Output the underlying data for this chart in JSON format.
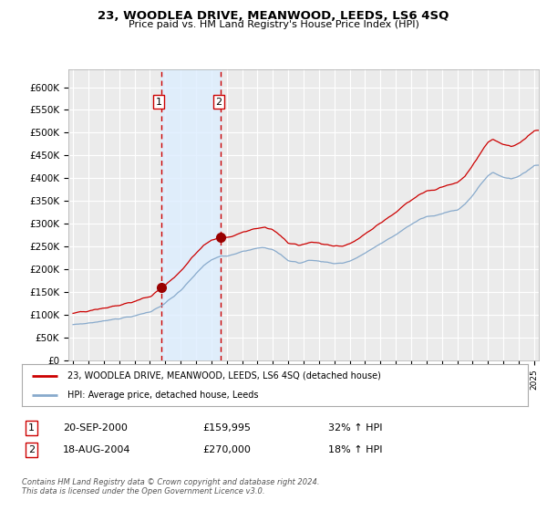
{
  "title": "23, WOODLEA DRIVE, MEANWOOD, LEEDS, LS6 4SQ",
  "subtitle": "Price paid vs. HM Land Registry's House Price Index (HPI)",
  "legend_line1": "23, WOODLEA DRIVE, MEANWOOD, LEEDS, LS6 4SQ (detached house)",
  "legend_line2": "HPI: Average price, detached house, Leeds",
  "table_row1_label": "1",
  "table_row1_date": "20-SEP-2000",
  "table_row1_price": "£159,995",
  "table_row1_hpi": "32% ↑ HPI",
  "table_row2_label": "2",
  "table_row2_date": "18-AUG-2004",
  "table_row2_price": "£270,000",
  "table_row2_hpi": "18% ↑ HPI",
  "footer": "Contains HM Land Registry data © Crown copyright and database right 2024.\nThis data is licensed under the Open Government Licence v3.0.",
  "sale1_year": 2000.72,
  "sale1_price": 159995,
  "sale2_year": 2004.63,
  "sale2_price": 270000,
  "ylim_min": 0,
  "ylim_max": 640000,
  "ytick_max": 600000,
  "ytick_step": 50000,
  "xlim_min": 1994.7,
  "xlim_max": 2025.3,
  "background_color": "#ffffff",
  "plot_bg_color": "#ebebeb",
  "grid_color": "#ffffff",
  "red_color": "#cc0000",
  "blue_color": "#88aacc",
  "sale_marker_color": "#990000",
  "vspan_color": "#ddeeff",
  "dashed_line_color": "#cc0000"
}
